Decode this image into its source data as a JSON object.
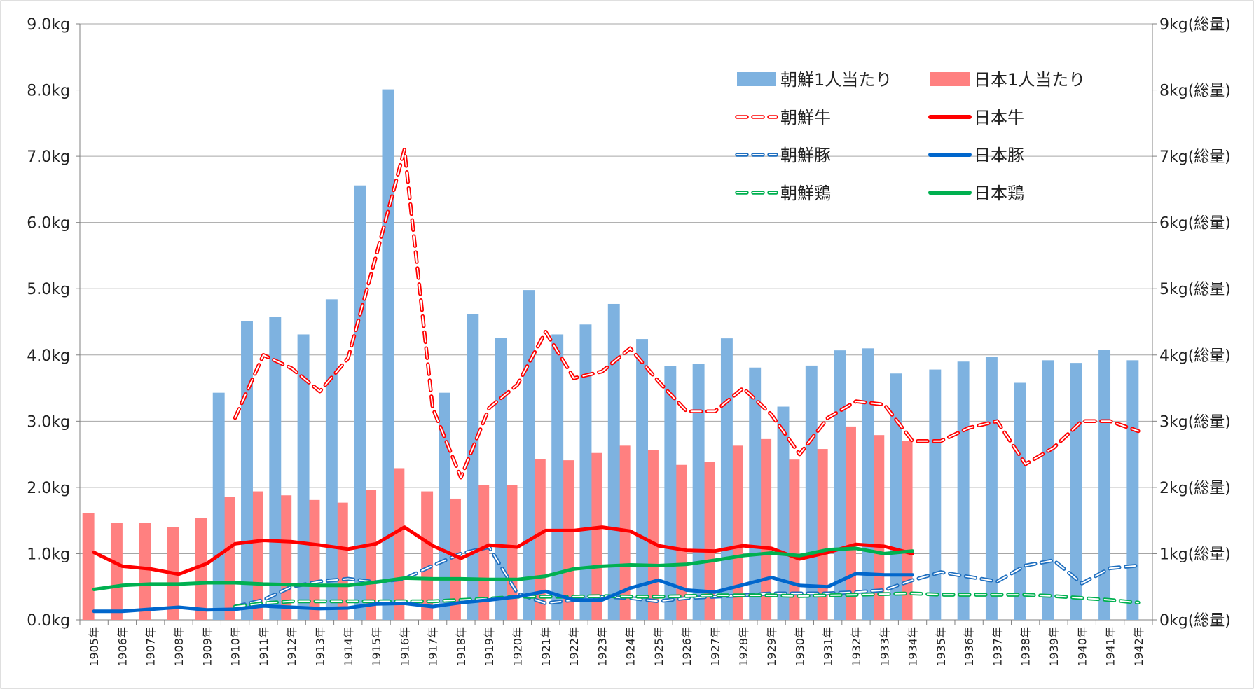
{
  "chart_data": {
    "type": "bar",
    "title": "",
    "xlabel": "",
    "ylabel": "",
    "ylim": [
      0,
      9
    ],
    "y2lim": [
      0,
      9
    ],
    "grid": "horizontal",
    "legend_position": "top-right",
    "categories": [
      "1905年",
      "1906年",
      "1907年",
      "1908年",
      "1909年",
      "1910年",
      "1911年",
      "1912年",
      "1913年",
      "1914年",
      "1915年",
      "1916年",
      "1917年",
      "1918年",
      "1919年",
      "1920年",
      "1921年",
      "1922年",
      "1923年",
      "1924年",
      "1925年",
      "1926年",
      "1927年",
      "1928年",
      "1929年",
      "1930年",
      "1931年",
      "1932年",
      "1933年",
      "1934年",
      "1935年",
      "1936年",
      "1937年",
      "1938年",
      "1939年",
      "1940年",
      "1941年",
      "1942年"
    ],
    "y_ticks": [
      "0.0kg",
      "1.0kg",
      "2.0kg",
      "3.0kg",
      "4.0kg",
      "5.0kg",
      "6.0kg",
      "7.0kg",
      "8.0kg",
      "9.0kg"
    ],
    "y2_ticks": [
      "0kg(総量)",
      "1kg(総量)",
      "2kg(総量)",
      "3kg(総量)",
      "4kg(総量)",
      "5kg(総量)",
      "6kg(総量)",
      "7kg(総量)",
      "8kg(総量)",
      "9kg(総量)"
    ],
    "bar_series": [
      {
        "name": "朝鮮1人当たり",
        "color": "#7eb2e0",
        "values": [
          null,
          null,
          null,
          null,
          null,
          3.43,
          4.51,
          4.57,
          4.31,
          4.84,
          6.56,
          8.01,
          null,
          3.43,
          4.62,
          4.26,
          4.98,
          4.31,
          4.46,
          4.77,
          4.24,
          3.83,
          3.87,
          4.25,
          3.81,
          3.22,
          3.84,
          4.07,
          4.1,
          3.72,
          3.78,
          3.9,
          3.97,
          3.58,
          3.92,
          3.88,
          4.08,
          3.92
        ]
      },
      {
        "name": "日本1人当たり",
        "color": "#ff8080",
        "values": [
          1.61,
          1.46,
          1.47,
          1.4,
          1.54,
          1.86,
          1.94,
          1.88,
          1.81,
          1.77,
          1.96,
          2.29,
          1.94,
          1.83,
          2.04,
          2.04,
          2.43,
          2.41,
          2.52,
          2.63,
          2.56,
          2.34,
          2.38,
          2.63,
          2.73,
          2.42,
          2.58,
          2.92,
          2.79,
          2.7,
          null,
          null,
          null,
          null,
          null,
          null,
          null,
          null
        ]
      }
    ],
    "line_series": [
      {
        "name": "朝鮮牛",
        "color": "#ff0000",
        "style": "dashed",
        "values": [
          null,
          null,
          null,
          null,
          null,
          3.05,
          4.0,
          3.8,
          3.45,
          3.95,
          5.5,
          7.1,
          3.2,
          2.15,
          3.2,
          3.55,
          4.35,
          3.65,
          3.75,
          4.1,
          3.6,
          3.15,
          3.15,
          3.5,
          3.1,
          2.5,
          3.05,
          3.3,
          3.25,
          2.7,
          2.7,
          2.9,
          3.0,
          2.35,
          2.6,
          3.0,
          3.0,
          2.85
        ]
      },
      {
        "name": "日本牛",
        "color": "#ff0000",
        "style": "solid",
        "values": [
          1.02,
          0.81,
          0.77,
          0.69,
          0.85,
          1.15,
          1.2,
          1.18,
          1.13,
          1.07,
          1.15,
          1.4,
          1.12,
          0.93,
          1.13,
          1.1,
          1.35,
          1.35,
          1.4,
          1.34,
          1.12,
          1.05,
          1.04,
          1.12,
          1.08,
          0.92,
          1.02,
          1.14,
          1.11,
          1.0,
          null,
          null,
          null,
          null,
          null,
          null,
          null,
          null
        ]
      },
      {
        "name": "朝鮮豚",
        "color": "#1f6fbf",
        "style": "dashed",
        "values": [
          null,
          null,
          null,
          null,
          null,
          0.2,
          0.3,
          0.5,
          0.58,
          0.62,
          0.57,
          0.62,
          0.82,
          1.0,
          1.1,
          0.4,
          0.25,
          0.3,
          0.35,
          0.33,
          0.28,
          0.33,
          0.35,
          0.37,
          0.4,
          0.4,
          0.4,
          0.42,
          0.45,
          0.6,
          0.72,
          0.65,
          0.58,
          0.82,
          0.9,
          0.55,
          0.78,
          0.82
        ]
      },
      {
        "name": "日本豚",
        "color": "#0066cc",
        "style": "solid",
        "values": [
          0.13,
          0.13,
          0.16,
          0.19,
          0.15,
          0.16,
          0.21,
          0.19,
          0.17,
          0.18,
          0.24,
          0.25,
          0.2,
          0.26,
          0.3,
          0.35,
          0.43,
          0.3,
          0.3,
          0.48,
          0.6,
          0.45,
          0.42,
          0.53,
          0.64,
          0.52,
          0.5,
          0.7,
          0.68,
          0.68,
          null,
          null,
          null,
          null,
          null,
          null,
          null,
          null
        ]
      },
      {
        "name": "朝鮮鶏",
        "color": "#00b050",
        "style": "dashed",
        "values": [
          null,
          null,
          null,
          null,
          null,
          0.2,
          0.25,
          0.28,
          0.28,
          0.28,
          0.28,
          0.28,
          0.28,
          0.3,
          0.32,
          0.35,
          0.35,
          0.35,
          0.36,
          0.35,
          0.35,
          0.36,
          0.37,
          0.37,
          0.37,
          0.36,
          0.37,
          0.38,
          0.39,
          0.4,
          0.38,
          0.38,
          0.38,
          0.38,
          0.36,
          0.33,
          0.3,
          0.26
        ]
      },
      {
        "name": "日本鶏",
        "color": "#00b050",
        "style": "solid",
        "values": [
          0.46,
          0.52,
          0.54,
          0.54,
          0.56,
          0.56,
          0.54,
          0.53,
          0.52,
          0.52,
          0.57,
          0.63,
          0.62,
          0.62,
          0.61,
          0.61,
          0.66,
          0.77,
          0.81,
          0.83,
          0.82,
          0.84,
          0.9,
          0.97,
          1.01,
          0.97,
          1.06,
          1.08,
          1.0,
          1.04,
          null,
          null,
          null,
          null,
          null,
          null,
          null,
          null
        ]
      }
    ]
  }
}
